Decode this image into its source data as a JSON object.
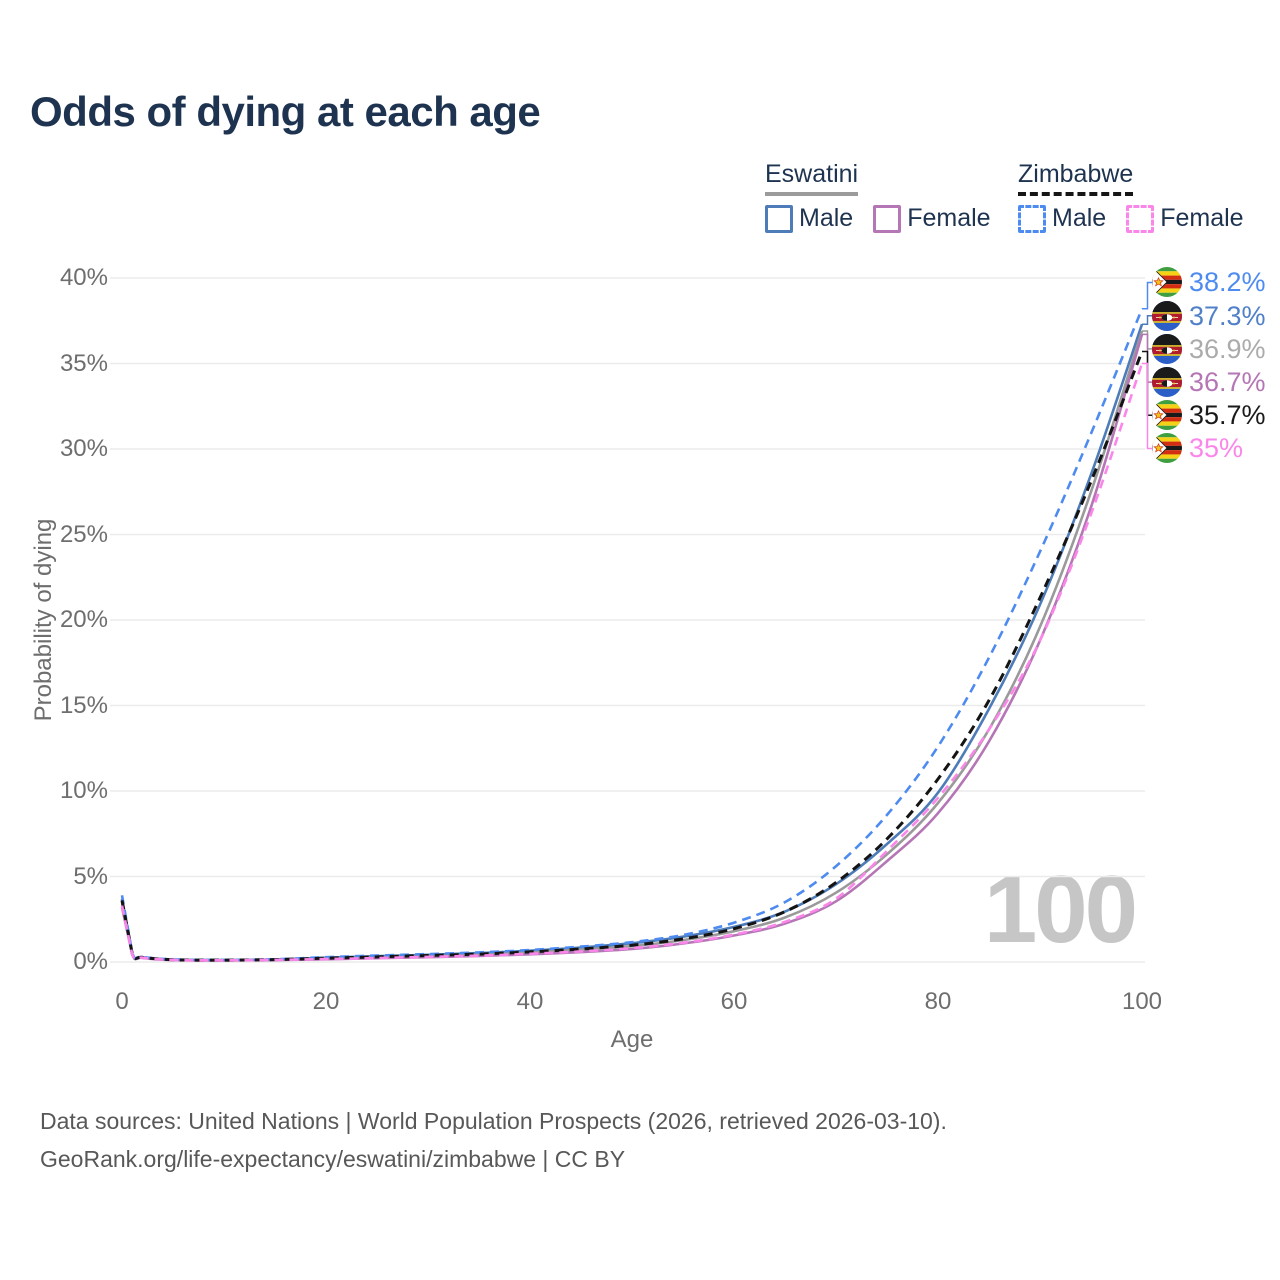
{
  "title": "Odds of dying at each age",
  "legend": {
    "groups": [
      {
        "name": "Eswatini",
        "items": [
          {
            "label": "Male"
          },
          {
            "label": "Female"
          }
        ]
      },
      {
        "name": "Zimbabwe",
        "items": [
          {
            "label": "Male"
          },
          {
            "label": "Female"
          }
        ]
      }
    ]
  },
  "axes": {
    "x": {
      "label": "Age",
      "ticks": [
        "0",
        "20",
        "40",
        "60",
        "80",
        "100"
      ]
    },
    "y": {
      "label": "Probability of dying",
      "ticks": [
        "40%",
        "35%",
        "30%",
        "25%",
        "20%",
        "15%",
        "10%",
        "5%",
        "0%"
      ]
    }
  },
  "watermark": {
    "value": "100"
  },
  "end_labels": [
    {
      "value": "38.2%",
      "series": "Zimbabwe Male",
      "flag": "zimbabwe-flag",
      "color": "#4e8bf0"
    },
    {
      "value": "37.3%",
      "series": "Eswatini Male",
      "flag": "eswatini-flag",
      "color": "#5080c8"
    },
    {
      "value": "36.9%",
      "series": "Eswatini Both sexes",
      "flag": "eswatini-flag",
      "color": "#ababab"
    },
    {
      "value": "36.7%",
      "series": "Eswatini Female",
      "flag": "eswatini-flag",
      "color": "#b476b4"
    },
    {
      "value": "35.7%",
      "series": "Zimbabwe Both sexes",
      "flag": "zimbabwe-flag",
      "color": "#1a1a1a"
    },
    {
      "value": "35%",
      "series": "Zimbabwe Female",
      "flag": "zimbabwe-flag",
      "color": "#fb86ea"
    }
  ],
  "footer": {
    "line1": "Data sources: United Nations | World Population Prospects (2026, retrieved 2026-03-10).",
    "line2": "GeoRank.org/life-expectancy/eswatini/zimbabwe | CC BY"
  },
  "chart_data": {
    "type": "line",
    "title": "Odds of dying at each age",
    "xlabel": "Age",
    "ylabel": "Probability of dying",
    "xlim": [
      0,
      100
    ],
    "ylim": [
      0,
      40
    ],
    "y_unit": "percent",
    "grid": "horizontal",
    "legend_position": "top-right",
    "xticks": [
      0,
      20,
      40,
      60,
      80,
      100
    ],
    "yticks": [
      0,
      5,
      10,
      15,
      20,
      25,
      30,
      35,
      40
    ],
    "x": [
      0,
      1,
      2,
      5,
      10,
      15,
      20,
      25,
      30,
      35,
      40,
      45,
      50,
      55,
      60,
      65,
      70,
      75,
      80,
      85,
      90,
      95,
      100
    ],
    "series": [
      {
        "name": "Eswatini Male",
        "country": "Eswatini",
        "sex": "male",
        "style": "solid",
        "color": "#4e7cb8",
        "end_label": "37.3%",
        "values": [
          3.7,
          0.5,
          0.28,
          0.14,
          0.11,
          0.15,
          0.25,
          0.34,
          0.42,
          0.52,
          0.66,
          0.85,
          1.1,
          1.48,
          2.05,
          2.95,
          4.55,
          6.9,
          9.9,
          14.8,
          20.9,
          28.5,
          37.3
        ]
      },
      {
        "name": "Eswatini Female",
        "country": "Eswatini",
        "sex": "female",
        "style": "solid",
        "color": "#b476b4",
        "end_label": "36.7%",
        "values": [
          3.2,
          0.44,
          0.24,
          0.11,
          0.09,
          0.11,
          0.16,
          0.22,
          0.28,
          0.35,
          0.45,
          0.58,
          0.76,
          1.08,
          1.55,
          2.25,
          3.55,
          5.9,
          8.7,
          12.9,
          18.8,
          26.6,
          36.7
        ]
      },
      {
        "name": "Eswatini Both sexes",
        "country": "Eswatini",
        "sex": "both",
        "style": "solid",
        "color": "#9a9a9a",
        "end_label": "36.9%",
        "values": [
          3.5,
          0.47,
          0.26,
          0.13,
          0.1,
          0.13,
          0.21,
          0.28,
          0.35,
          0.44,
          0.56,
          0.72,
          0.93,
          1.28,
          1.8,
          2.6,
          4.05,
          6.3,
          9.3,
          13.6,
          19.6,
          27.5,
          36.9
        ]
      },
      {
        "name": "Zimbabwe Male",
        "country": "Zimbabwe",
        "sex": "male",
        "style": "dashed",
        "color": "#4e8bf0",
        "end_label": "38.2%",
        "values": [
          3.9,
          0.55,
          0.3,
          0.15,
          0.12,
          0.16,
          0.28,
          0.38,
          0.46,
          0.56,
          0.7,
          0.9,
          1.16,
          1.58,
          2.3,
          3.5,
          5.6,
          8.6,
          12.6,
          17.8,
          24.0,
          30.9,
          38.2
        ]
      },
      {
        "name": "Zimbabwe Female",
        "country": "Zimbabwe",
        "sex": "female",
        "style": "dashed",
        "color": "#fb86ea",
        "end_label": "35%",
        "values": [
          3.3,
          0.45,
          0.25,
          0.12,
          0.1,
          0.12,
          0.17,
          0.23,
          0.3,
          0.37,
          0.48,
          0.62,
          0.81,
          1.12,
          1.6,
          2.35,
          3.7,
          6.5,
          9.6,
          13.6,
          18.8,
          26.2,
          35.0
        ]
      },
      {
        "name": "Zimbabwe Both sexes",
        "country": "Zimbabwe",
        "sex": "both",
        "style": "dashed",
        "color": "#141414",
        "end_label": "35.7%",
        "values": [
          3.6,
          0.5,
          0.27,
          0.13,
          0.11,
          0.14,
          0.22,
          0.3,
          0.38,
          0.46,
          0.59,
          0.76,
          0.98,
          1.35,
          1.95,
          2.95,
          4.65,
          7.2,
          10.7,
          15.3,
          21.3,
          28.1,
          35.7
        ]
      }
    ]
  }
}
